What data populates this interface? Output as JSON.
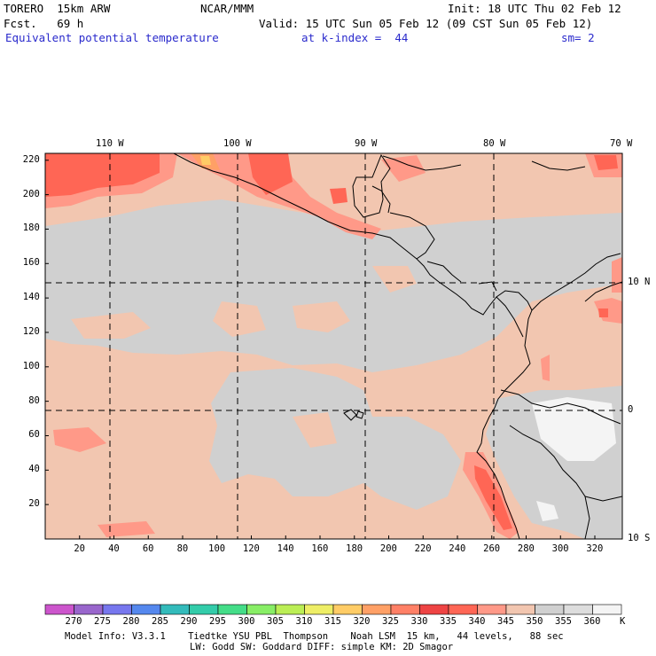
{
  "header": {
    "model": "TORERO  15km ARW",
    "org": "NCAR/MMM",
    "init": "Init: 18 UTC Thu 02 Feb 12",
    "fcst": "Fcst.   69 h",
    "valid": "Valid: 15 UTC Sun 05 Feb 12 (09 CST Sun 05 Feb 12)",
    "field": "Equivalent potential temperature",
    "level": "at k-index =  44",
    "smooth": "sm= 2"
  },
  "map": {
    "lon_labels": [
      "110 W",
      "100 W",
      "90 W",
      "80 W",
      "70 W"
    ],
    "lat_labels": [
      "10 N",
      "0",
      "10 S"
    ],
    "x_ticks": [
      "20",
      "40",
      "60",
      "80",
      "100",
      "120",
      "140",
      "160",
      "180",
      "200",
      "220",
      "240",
      "260",
      "280",
      "300",
      "320"
    ],
    "y_ticks": [
      "220",
      "200",
      "180",
      "160",
      "140",
      "120",
      "100",
      "80",
      "60",
      "40",
      "20"
    ]
  },
  "legend": {
    "values": [
      "270",
      "275",
      "280",
      "285",
      "290",
      "295",
      "300",
      "305",
      "310",
      "315",
      "320",
      "325",
      "330",
      "335",
      "340",
      "345",
      "350",
      "355",
      "360"
    ],
    "unit": "K",
    "colors": [
      "#cc55cc",
      "#9966cc",
      "#7777ee",
      "#5588ee",
      "#33bbbb",
      "#33ccaa",
      "#44dd88",
      "#88ee66",
      "#bbee55",
      "#eeee66",
      "#ffcc66",
      "#ffa066",
      "#ff8066",
      "#ee4444",
      "#ff6655",
      "#ff9988",
      "#f2c6b0",
      "#d0d0d0",
      "#dddddd",
      "#f4f4f4"
    ]
  },
  "footer": {
    "line1": "Model Info: V3.3.1    Tiedtke YSU PBL  Thompson    Noah LSM  15 km,   44 levels,   88 sec",
    "line2": "LW: Godd SW: Goddard DIFF: simple KM: 2D Smagor"
  }
}
